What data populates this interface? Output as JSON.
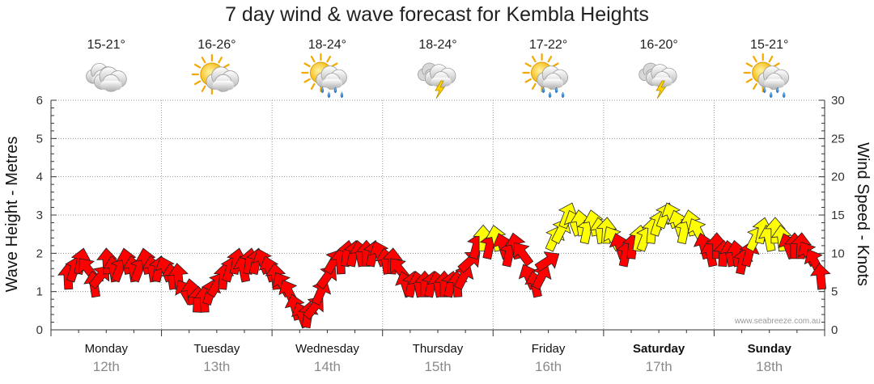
{
  "chart_data": {
    "type": "scatter",
    "title": "7 day wind & wave forecast for Kembla Heights",
    "ylabel_left": "Wave Height - Metres",
    "ylabel_right": "Wind Speed - Knots",
    "ylim_left": [
      0,
      6
    ],
    "ylim_right": [
      0,
      30
    ],
    "yticks_left": [
      "0",
      "1",
      "2",
      "3",
      "4",
      "5",
      "6"
    ],
    "yticks_right": [
      "0",
      "5",
      "10",
      "15",
      "20",
      "25",
      "30"
    ],
    "grid": true,
    "watermark": "www.seabreeze.com.au",
    "days": [
      {
        "day": "Monday",
        "date": "12th",
        "temp": "15-21°",
        "icon": "cloudy-icon",
        "bold": false
      },
      {
        "day": "Tuesday",
        "date": "13th",
        "temp": "16-26°",
        "icon": "sun-cloud-icon",
        "bold": false
      },
      {
        "day": "Wednesday",
        "date": "14th",
        "temp": "18-24°",
        "icon": "sun-cloud-rain-icon",
        "bold": false
      },
      {
        "day": "Thursday",
        "date": "15th",
        "temp": "18-24°",
        "icon": "cloud-lightning-icon",
        "bold": false
      },
      {
        "day": "Friday",
        "date": "16th",
        "temp": "17-22°",
        "icon": "sun-cloud-rain-icon",
        "bold": false
      },
      {
        "day": "Saturday",
        "date": "17th",
        "temp": "16-20°",
        "icon": "cloud-lightning-icon",
        "bold": true
      },
      {
        "day": "Sunday",
        "date": "18th",
        "temp": "15-21°",
        "icon": "sun-cloud-rain-icon",
        "bold": true
      }
    ],
    "colors": {
      "calm": "#ff0000",
      "moderate": "#ffff00",
      "outline": "#222222",
      "grid": "#999999"
    },
    "wind_speed_knots": [
      7,
      8,
      9,
      8,
      6,
      7,
      9,
      8,
      8,
      9,
      8,
      8,
      9,
      8,
      8,
      8,
      7,
      7,
      5,
      5,
      4,
      4,
      5,
      6,
      7,
      8,
      9,
      8,
      9,
      9,
      9,
      8,
      7,
      6,
      5,
      3,
      2,
      2,
      3,
      5,
      7,
      9,
      9,
      10,
      10,
      10,
      10,
      10,
      10,
      9,
      9,
      8,
      6,
      6,
      6,
      6,
      6,
      6,
      6,
      6,
      6,
      7,
      9,
      11,
      12,
      11,
      12,
      11,
      10,
      11,
      10,
      7,
      6,
      7,
      9,
      12,
      13,
      15,
      14,
      14,
      13,
      14,
      13,
      13,
      12,
      11,
      10,
      11,
      12,
      12,
      13,
      14,
      15,
      15,
      14,
      13,
      14,
      13,
      11,
      10,
      11,
      10,
      10,
      10,
      9,
      10,
      12,
      13,
      12,
      13,
      12,
      11,
      11,
      11,
      10,
      9,
      7
    ]
  }
}
